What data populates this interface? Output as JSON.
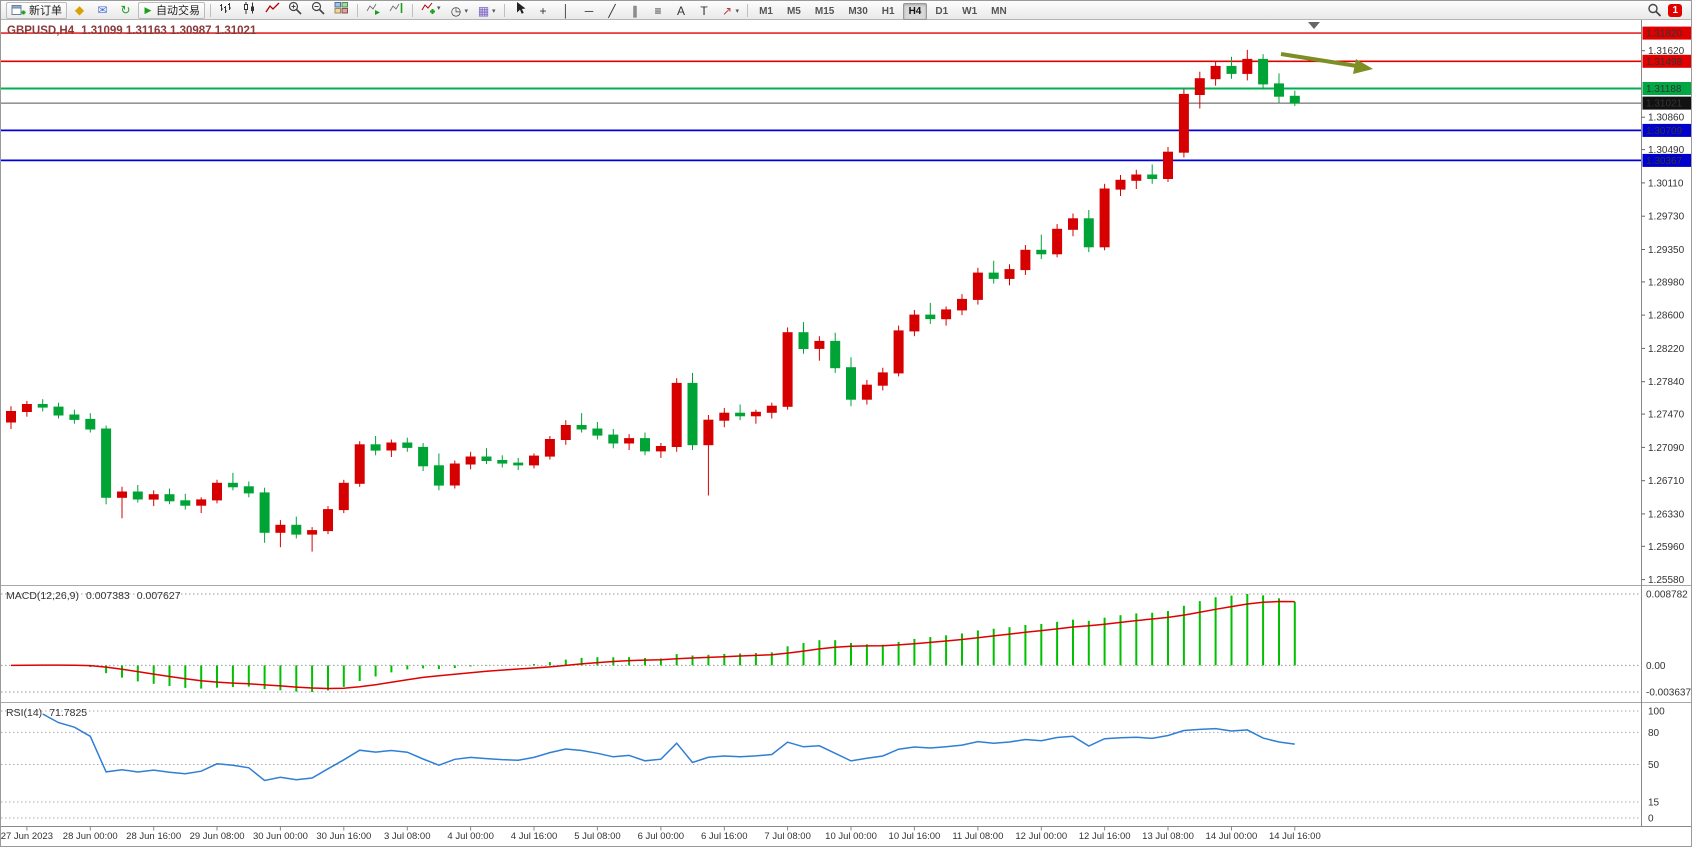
{
  "app": {
    "badge_count": "1"
  },
  "toolbar": {
    "new_order_label": "新订单",
    "auto_trading_label": "自动交易",
    "play_glyph": "▶",
    "caret_glyph": "▾",
    "timeframes": [
      "M1",
      "M5",
      "M15",
      "M30",
      "H1",
      "H4",
      "D1",
      "W1",
      "MN"
    ],
    "active_timeframe": "H4",
    "quick_icons": [
      {
        "name": "metaeditor-icon",
        "glyph": "◆",
        "color": "#d8a200"
      },
      {
        "name": "mailbox-icon",
        "glyph": "✉",
        "color": "#4a6fd4"
      },
      {
        "name": "refresh-icon",
        "glyph": "↻",
        "color": "#22a022"
      }
    ],
    "chart_type_icons": [
      {
        "name": "bar-chart-icon",
        "svg": "bars"
      },
      {
        "name": "candlestick-chart-icon",
        "svg": "candles"
      },
      {
        "name": "line-chart-icon",
        "svg": "linechart"
      }
    ],
    "zoom_icons": [
      {
        "name": "zoom-in-icon",
        "svg": "zoomin"
      },
      {
        "name": "zoom-out-icon",
        "svg": "zoomout"
      },
      {
        "name": "tile-windows-icon",
        "svg": "grid"
      }
    ],
    "nav_icons": [
      {
        "name": "auto-scroll-icon",
        "svg": "autoscroll"
      },
      {
        "name": "chart-shift-icon",
        "svg": "shift"
      }
    ],
    "insert_icons": [
      {
        "name": "indicators-add-icon",
        "svg": "addind",
        "caret": true
      },
      {
        "name": "periods-icon",
        "glyph": "◷",
        "color": "#333333",
        "caret": true
      },
      {
        "name": "templates-icon",
        "glyph": "▦",
        "color": "#7a5ec4",
        "caret": true
      }
    ],
    "draw_icons": [
      {
        "name": "cursor-icon",
        "svg": "cursor"
      },
      {
        "name": "crosshair-icon",
        "glyph": "+",
        "color": "#333333"
      },
      {
        "name": "vertical-line-icon",
        "glyph": "│",
        "color": "#333333"
      },
      {
        "name": "horizontal-line-icon",
        "glyph": "─",
        "color": "#333333"
      },
      {
        "name": "trendline-icon",
        "glyph": "╱",
        "color": "#333333"
      },
      {
        "name": "equidistant-channel-icon",
        "glyph": "∥",
        "color": "#333333"
      },
      {
        "name": "fibonacci-icon",
        "glyph": "≡",
        "color": "#333333"
      },
      {
        "name": "text-icon",
        "glyph": "A",
        "color": "#333333"
      },
      {
        "name": "text-label-icon",
        "glyph": "T",
        "color": "#333333"
      },
      {
        "name": "arrows-icon",
        "glyph": "↗",
        "color": "#b04040",
        "caret": true
      }
    ]
  },
  "chart_header": {
    "symbol_period": "GBPUSD,H4",
    "ohlc": "1.31099 1.31163 1.30987 1.31021"
  },
  "main_chart": {
    "price_top": 1.3197,
    "price_bottom": 1.2553,
    "levels": [
      {
        "name": "resistance-1",
        "label": "1.31820",
        "price": 1.3182,
        "color": "#e00000",
        "tag_bg": "#e00000",
        "width": 1.4
      },
      {
        "name": "resistance-2",
        "label": "1.31498",
        "price": 1.31498,
        "color": "#e00000",
        "tag_bg": "#e00000",
        "width": 1.6
      },
      {
        "name": "support-green",
        "label": "1.31188",
        "price": 1.31188,
        "color": "#00b050",
        "tag_bg": "#00a844",
        "width": 2
      },
      {
        "name": "current-price",
        "label": "1.31021",
        "price": 1.31021,
        "color": "#555555",
        "tag_bg": "#111111",
        "width": 1
      },
      {
        "name": "support-blue-1",
        "label": "1.30709",
        "price": 1.30709,
        "color": "#0000dd",
        "tag_bg": "#0000cd",
        "width": 1.8
      },
      {
        "name": "support-blue-2",
        "label": "1.30367",
        "price": 1.30367,
        "color": "#0000dd",
        "tag_bg": "#0000cd",
        "width": 1.8
      }
    ],
    "axis_ticks": [
      "1.31620",
      "1.30860",
      "1.30490",
      "1.30110",
      "1.29730",
      "1.29350",
      "1.28980",
      "1.28600",
      "1.28220",
      "1.27840",
      "1.27470",
      "1.27090",
      "1.26710",
      "1.26330",
      "1.25960",
      "1.25580"
    ],
    "annotation": {
      "name": "trend-arrow",
      "color": "#7d8f24"
    }
  },
  "chart_data": {
    "type": "candlestick",
    "title": "GBPUSD H4",
    "up_color": "#d60000",
    "down_color": "#00a335",
    "label_step": 4,
    "first_label_index": 1,
    "x_labels": [
      "27 Jun 2023",
      "28 Jun 00:00",
      "28 Jun 16:00",
      "29 Jun 08:00",
      "30 Jun 00:00",
      "30 Jun 16:00",
      "3 Jul 08:00",
      "4 Jul 00:00",
      "4 Jul 16:00",
      "5 Jul 08:00",
      "6 Jul 00:00",
      "6 Jul 16:00",
      "7 Jul 08:00",
      "10 Jul 00:00",
      "10 Jul 16:00",
      "11 Jul 08:00",
      "12 Jul 00:00",
      "12 Jul 16:00",
      "13 Jul 08:00",
      "14 Jul 00:00",
      "14 Jul 16:00"
    ],
    "candles": [
      [
        1.2738,
        1.2756,
        1.273,
        1.275
      ],
      [
        1.275,
        1.2762,
        1.2744,
        1.2758
      ],
      [
        1.2758,
        1.2764,
        1.275,
        1.2755
      ],
      [
        1.2755,
        1.276,
        1.2742,
        1.2746
      ],
      [
        1.2746,
        1.2752,
        1.2736,
        1.2741
      ],
      [
        1.2741,
        1.2748,
        1.2726,
        1.273
      ],
      [
        1.273,
        1.2734,
        1.2644,
        1.2652
      ],
      [
        1.2652,
        1.2664,
        1.2628,
        1.2658
      ],
      [
        1.2658,
        1.2666,
        1.2646,
        1.265
      ],
      [
        1.265,
        1.266,
        1.2642,
        1.2655
      ],
      [
        1.2655,
        1.2662,
        1.2644,
        1.2648
      ],
      [
        1.2648,
        1.2656,
        1.2638,
        1.2643
      ],
      [
        1.2643,
        1.2652,
        1.2634,
        1.2649
      ],
      [
        1.2649,
        1.2672,
        1.2645,
        1.2668
      ],
      [
        1.2668,
        1.268,
        1.266,
        1.2664
      ],
      [
        1.2664,
        1.267,
        1.2652,
        1.2657
      ],
      [
        1.2657,
        1.2663,
        1.26,
        1.2612
      ],
      [
        1.2612,
        1.2626,
        1.2595,
        1.262
      ],
      [
        1.262,
        1.263,
        1.2605,
        1.261
      ],
      [
        1.261,
        1.2618,
        1.259,
        1.2614
      ],
      [
        1.2614,
        1.2642,
        1.261,
        1.2638
      ],
      [
        1.2638,
        1.2672,
        1.2634,
        1.2668
      ],
      [
        1.2668,
        1.2716,
        1.2664,
        1.2712
      ],
      [
        1.2712,
        1.2722,
        1.27,
        1.2706
      ],
      [
        1.2706,
        1.2718,
        1.2698,
        1.2714
      ],
      [
        1.2714,
        1.272,
        1.2704,
        1.2709
      ],
      [
        1.2709,
        1.2714,
        1.2682,
        1.2688
      ],
      [
        1.2688,
        1.2702,
        1.266,
        1.2666
      ],
      [
        1.2666,
        1.2694,
        1.2662,
        1.269
      ],
      [
        1.269,
        1.2704,
        1.2684,
        1.2698
      ],
      [
        1.2698,
        1.2708,
        1.269,
        1.2694
      ],
      [
        1.2694,
        1.27,
        1.2686,
        1.2691
      ],
      [
        1.2691,
        1.2697,
        1.2683,
        1.2689
      ],
      [
        1.2689,
        1.2702,
        1.2685,
        1.2699
      ],
      [
        1.2699,
        1.2722,
        1.2695,
        1.2718
      ],
      [
        1.2718,
        1.274,
        1.2712,
        1.2734
      ],
      [
        1.2734,
        1.2748,
        1.2726,
        1.273
      ],
      [
        1.273,
        1.2738,
        1.2718,
        1.2723
      ],
      [
        1.2723,
        1.273,
        1.2708,
        1.2714
      ],
      [
        1.2714,
        1.2724,
        1.2706,
        1.2719
      ],
      [
        1.2719,
        1.2726,
        1.27,
        1.2705
      ],
      [
        1.2705,
        1.2714,
        1.2697,
        1.271
      ],
      [
        1.271,
        1.2788,
        1.2704,
        1.2782
      ],
      [
        1.2782,
        1.2794,
        1.2706,
        1.2712
      ],
      [
        1.2712,
        1.2746,
        1.2654,
        1.274
      ],
      [
        1.274,
        1.2754,
        1.2732,
        1.2748
      ],
      [
        1.2748,
        1.2758,
        1.274,
        1.2745
      ],
      [
        1.2745,
        1.2752,
        1.2736,
        1.2749
      ],
      [
        1.2749,
        1.276,
        1.2742,
        1.2756
      ],
      [
        1.2756,
        1.2846,
        1.2752,
        1.284
      ],
      [
        1.284,
        1.2852,
        1.2816,
        1.2822
      ],
      [
        1.2822,
        1.2836,
        1.2808,
        1.283
      ],
      [
        1.283,
        1.284,
        1.2794,
        1.28
      ],
      [
        1.28,
        1.2812,
        1.2756,
        1.2764
      ],
      [
        1.2764,
        1.2786,
        1.2758,
        1.278
      ],
      [
        1.278,
        1.28,
        1.2774,
        1.2794
      ],
      [
        1.2794,
        1.2848,
        1.279,
        1.2842
      ],
      [
        1.2842,
        1.2866,
        1.2836,
        1.286
      ],
      [
        1.286,
        1.2874,
        1.285,
        1.2856
      ],
      [
        1.2856,
        1.287,
        1.2848,
        1.2866
      ],
      [
        1.2866,
        1.2884,
        1.286,
        1.2878
      ],
      [
        1.2878,
        1.2914,
        1.2872,
        1.2908
      ],
      [
        1.2908,
        1.2922,
        1.2896,
        1.2902
      ],
      [
        1.2902,
        1.2918,
        1.2894,
        1.2912
      ],
      [
        1.2912,
        1.294,
        1.2906,
        1.2934
      ],
      [
        1.2934,
        1.2952,
        1.2924,
        1.293
      ],
      [
        1.293,
        1.2964,
        1.2926,
        1.2958
      ],
      [
        1.2958,
        1.2976,
        1.295,
        1.297
      ],
      [
        1.297,
        1.298,
        1.2932,
        1.2938
      ],
      [
        1.2938,
        1.301,
        1.2934,
        1.3004
      ],
      [
        1.3004,
        1.302,
        1.2996,
        1.3014
      ],
      [
        1.3014,
        1.3026,
        1.3004,
        1.302
      ],
      [
        1.302,
        1.3032,
        1.301,
        1.3016
      ],
      [
        1.3016,
        1.3052,
        1.3012,
        1.3046
      ],
      [
        1.3046,
        1.3118,
        1.304,
        1.3112
      ],
      [
        1.3112,
        1.3138,
        1.3096,
        1.313
      ],
      [
        1.313,
        1.315,
        1.3122,
        1.3144
      ],
      [
        1.3144,
        1.3155,
        1.313,
        1.3136
      ],
      [
        1.3136,
        1.3163,
        1.3128,
        1.3152
      ],
      [
        1.3152,
        1.3158,
        1.3118,
        1.3124
      ],
      [
        1.3124,
        1.3136,
        1.3102,
        1.311
      ],
      [
        1.31099,
        1.31163,
        1.30987,
        1.31021
      ]
    ]
  },
  "macd": {
    "label": "MACD(12,26,9)",
    "value_main": "0.007383",
    "value_signal": "0.007627",
    "fast": 12,
    "slow": 26,
    "signal_period": 9,
    "max_label": "0.008782",
    "zero_label": "0.00",
    "min_label": "-0.003637",
    "histogram_color": "#00c000",
    "signal_color": "#e00000"
  },
  "rsi": {
    "label": "RSI(14)",
    "value": "71.7825",
    "period": 14,
    "line_color": "#2f7fd6",
    "axis": [
      {
        "label": "100",
        "value": 100
      },
      {
        "label": "80",
        "value": 80
      },
      {
        "label": "50",
        "value": 50
      },
      {
        "label": "15",
        "value": 15
      },
      {
        "label": "0",
        "value": 0
      }
    ]
  }
}
